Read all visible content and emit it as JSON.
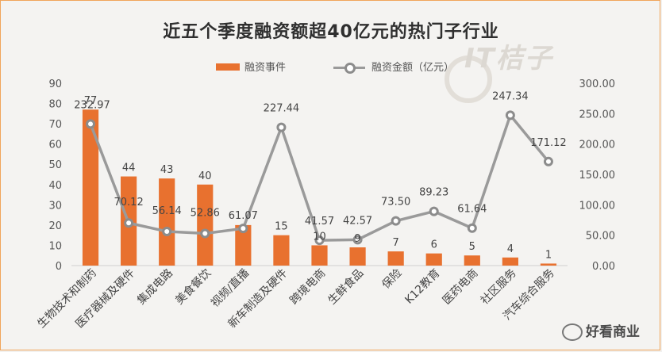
{
  "chart_data": {
    "type": "bar",
    "title": "近五个季度融资额超40亿元的热门子行业",
    "categories": [
      "生物技术和制药",
      "医疗器械及硬件",
      "集成电路",
      "美食餐饮",
      "视频/直播",
      "新车制造及硬件",
      "跨境电商",
      "生鲜食品",
      "保险",
      "K12教育",
      "医药电商",
      "社区服务",
      "汽车综合服务"
    ],
    "series": [
      {
        "name": "融资事件",
        "type": "bar",
        "axis": "left",
        "values": [
          77,
          44,
          43,
          40,
          20,
          15,
          10,
          9,
          7,
          6,
          5,
          4,
          1
        ],
        "labels": [
          "77",
          "44",
          "43",
          "40",
          "",
          "15",
          "10",
          "9",
          "7",
          "6",
          "5",
          "4",
          "1"
        ]
      },
      {
        "name": "融资金额（亿元）",
        "type": "line",
        "axis": "right",
        "values": [
          232.97,
          70.12,
          56.14,
          52.86,
          61.07,
          227.44,
          41.57,
          42.57,
          73.5,
          89.23,
          61.64,
          247.34,
          171.12
        ],
        "labels": [
          "232.97",
          "70.12",
          "56.14",
          "52.86",
          "61.07",
          "227.44",
          "41.57",
          "42.57",
          "73.50",
          "89.23",
          "61.64",
          "247.34",
          "171.12"
        ]
      }
    ],
    "combined_label_index4": "61.07",
    "ylim_left": [
      0,
      90
    ],
    "ylim_right": [
      0,
      300
    ],
    "left_ticks": [
      "0",
      "10",
      "20",
      "30",
      "40",
      "50",
      "60",
      "70",
      "80",
      "90"
    ],
    "right_ticks": [
      "0.00",
      "50.00",
      "100.00",
      "150.00",
      "200.00",
      "250.00",
      "300.00"
    ],
    "legend_position": "top-center",
    "grid": false,
    "colors": {
      "bar": "#e8712f",
      "line": "#9a9a9a",
      "marker_edge": "#8c8c8c"
    }
  },
  "logo_text": "IT桔子",
  "watermark": "好看商业"
}
